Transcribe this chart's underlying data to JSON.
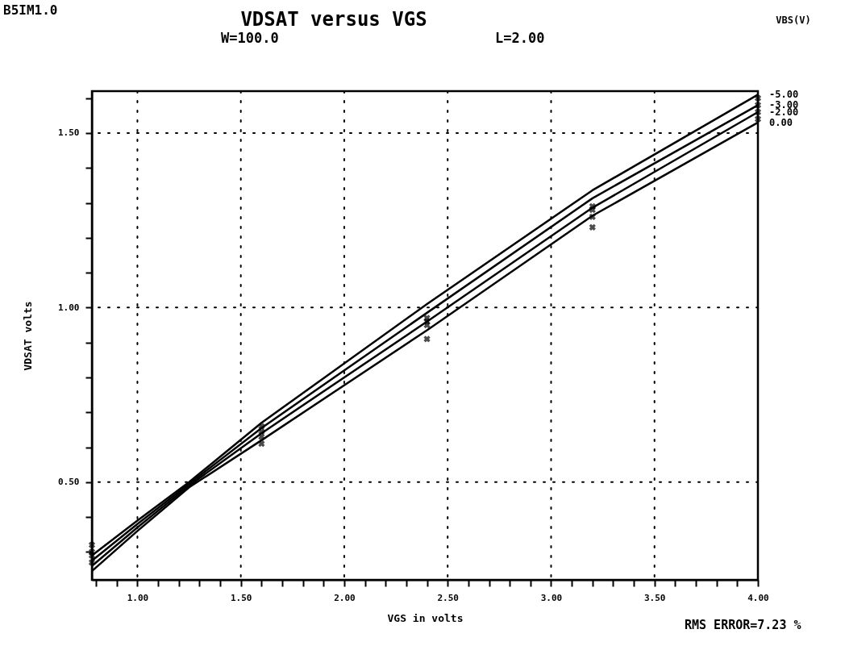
{
  "chart_data": {
    "type": "line",
    "title": "VDSAT versus VGS",
    "xlabel": "VGS in volts",
    "ylabel": "VDSAT volts",
    "legend_title": "VBS(V)",
    "annotations": [
      "B5IM1.0",
      "W=100.0",
      "L=2.00",
      "RMS ERROR=7.23 %"
    ],
    "xlim": [
      0.78,
      4.0
    ],
    "ylim": [
      0.22,
      1.62
    ],
    "xticks": [
      {
        "value": 0.8,
        "label": null
      },
      {
        "value": 0.9,
        "label": null
      },
      {
        "value": 1.0,
        "label": "1.00"
      },
      {
        "value": 1.1,
        "label": null
      },
      {
        "value": 1.2,
        "label": null
      },
      {
        "value": 1.3,
        "label": null
      },
      {
        "value": 1.4,
        "label": null
      },
      {
        "value": 1.5,
        "label": "1.50"
      },
      {
        "value": 1.6,
        "label": null
      },
      {
        "value": 1.7,
        "label": null
      },
      {
        "value": 1.8,
        "label": null
      },
      {
        "value": 1.9,
        "label": null
      },
      {
        "value": 2.0,
        "label": "2.00"
      },
      {
        "value": 2.1,
        "label": null
      },
      {
        "value": 2.2,
        "label": null
      },
      {
        "value": 2.3,
        "label": null
      },
      {
        "value": 2.4,
        "label": null
      },
      {
        "value": 2.5,
        "label": "2.50"
      },
      {
        "value": 2.6,
        "label": null
      },
      {
        "value": 2.7,
        "label": null
      },
      {
        "value": 2.8,
        "label": null
      },
      {
        "value": 2.9,
        "label": null
      },
      {
        "value": 3.0,
        "label": "3.00"
      },
      {
        "value": 3.1,
        "label": null
      },
      {
        "value": 3.2,
        "label": null
      },
      {
        "value": 3.3,
        "label": null
      },
      {
        "value": 3.4,
        "label": null
      },
      {
        "value": 3.5,
        "label": "3.50"
      },
      {
        "value": 3.6,
        "label": null
      },
      {
        "value": 3.7,
        "label": null
      },
      {
        "value": 3.8,
        "label": null
      },
      {
        "value": 3.9,
        "label": null
      },
      {
        "value": 4.0,
        "label": "4.00"
      }
    ],
    "yticks": [
      {
        "value": 0.3,
        "label": null
      },
      {
        "value": 0.4,
        "label": null
      },
      {
        "value": 0.5,
        "label": "0.50"
      },
      {
        "value": 0.6,
        "label": null
      },
      {
        "value": 0.7,
        "label": null
      },
      {
        "value": 0.8,
        "label": null
      },
      {
        "value": 0.9,
        "label": null
      },
      {
        "value": 1.0,
        "label": "1.00"
      },
      {
        "value": 1.1,
        "label": null
      },
      {
        "value": 1.2,
        "label": null
      },
      {
        "value": 1.3,
        "label": null
      },
      {
        "value": 1.4,
        "label": null
      },
      {
        "value": 1.5,
        "label": "1.50"
      },
      {
        "value": 1.6,
        "label": null
      }
    ],
    "grid": true,
    "legend": false,
    "line_style": "solid",
    "x": [
      0.78,
      1.0,
      1.25,
      1.6,
      2.4,
      3.2,
      4.0
    ],
    "series": [
      {
        "name": "-5.00",
        "color": "#000000",
        "values": [
          0.29,
          0.39,
          0.5,
          0.67,
          1.01,
          1.336,
          1.61
        ]
      },
      {
        "name": "-3.00",
        "color": "#000000",
        "values": [
          0.275,
          0.38,
          0.495,
          0.655,
          0.985,
          1.313,
          1.58
        ]
      },
      {
        "name": "-2.00",
        "color": "#000000",
        "values": [
          0.26,
          0.37,
          0.49,
          0.64,
          0.96,
          1.286,
          1.56
        ]
      },
      {
        "name": "0.00",
        "color": "#000000",
        "values": [
          0.245,
          0.36,
          0.485,
          0.62,
          0.935,
          1.263,
          1.53
        ]
      },
      {
        "type": "scatter",
        "marker": "cross",
        "color": "#000000",
        "x": [
          0.78,
          0.78,
          0.78,
          0.78,
          1.6,
          1.6,
          1.6,
          1.6,
          2.4,
          2.4,
          2.4,
          2.4,
          3.2,
          3.2,
          3.2,
          3.2,
          4.0,
          4.0,
          4.0,
          4.0
        ],
        "values": [
          0.32,
          0.3,
          0.29,
          0.27,
          0.66,
          0.645,
          0.63,
          0.61,
          0.97,
          0.96,
          0.95,
          0.91,
          1.29,
          1.28,
          1.26,
          1.23,
          1.6,
          1.58,
          1.56,
          1.54
        ]
      }
    ]
  }
}
